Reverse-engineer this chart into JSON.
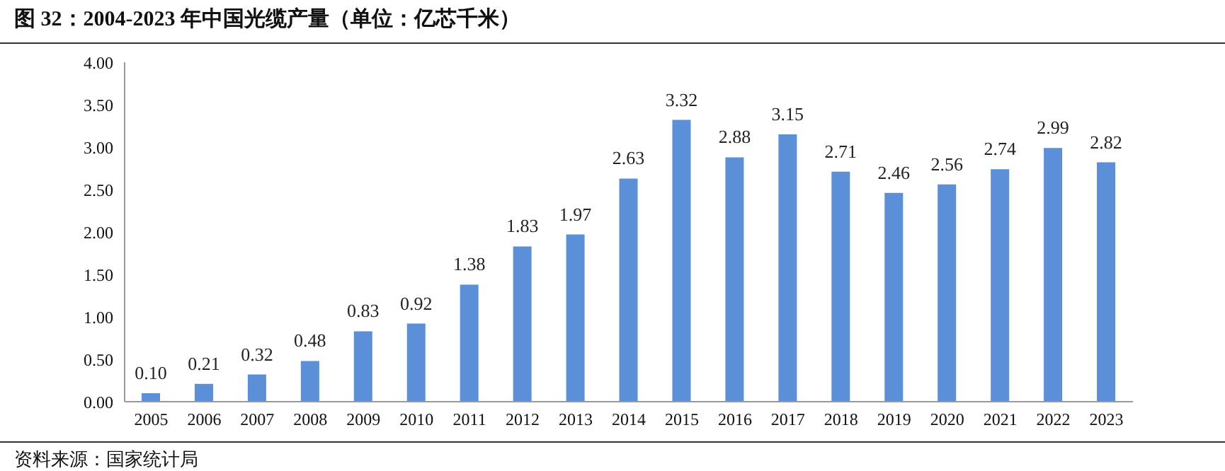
{
  "chart_data": {
    "type": "bar",
    "title": "图 32：2004-2023 年中国光缆产量（单位：亿芯千米）",
    "categories": [
      "2005",
      "2006",
      "2007",
      "2008",
      "2009",
      "2010",
      "2011",
      "2012",
      "2013",
      "2014",
      "2015",
      "2016",
      "2017",
      "2018",
      "2019",
      "2020",
      "2021",
      "2022",
      "2023"
    ],
    "values": [
      0.1,
      0.21,
      0.32,
      0.48,
      0.83,
      0.92,
      1.38,
      1.83,
      1.97,
      2.63,
      3.32,
      2.88,
      3.15,
      2.71,
      2.46,
      2.56,
      2.74,
      2.99,
      2.82
    ],
    "value_labels": [
      "0.10",
      "0.21",
      "0.32",
      "0.48",
      "0.83",
      "0.92",
      "1.38",
      "1.83",
      "1.97",
      "2.63",
      "3.32",
      "2.88",
      "3.15",
      "2.71",
      "2.46",
      "2.56",
      "2.74",
      "2.99",
      "2.82"
    ],
    "color": "#5b8fd8",
    "ylim": [
      0,
      4
    ],
    "yticks": [
      {
        "value": 0,
        "label": "0.00"
      },
      {
        "value": 0.5,
        "label": "0.50"
      },
      {
        "value": 1,
        "label": "1.00"
      },
      {
        "value": 1.5,
        "label": "1.50"
      },
      {
        "value": 2,
        "label": "2.00"
      },
      {
        "value": 2.5,
        "label": "2.50"
      },
      {
        "value": 3,
        "label": "3.00"
      },
      {
        "value": 3.5,
        "label": "3.50"
      },
      {
        "value": 4,
        "label": "4.00"
      }
    ],
    "annotations": [
      "资料来源：国家统计局"
    ]
  }
}
